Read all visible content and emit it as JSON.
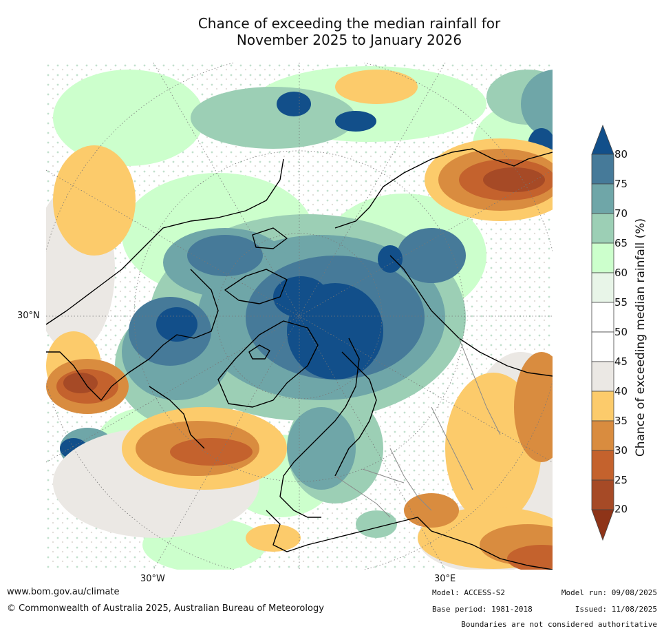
{
  "title": {
    "line1": "Chance of exceeding the median rainfall for",
    "line2": "November 2025 to January 2026"
  },
  "map": {
    "projection": "north polar stereographic",
    "lat_labels": [
      "30°N"
    ],
    "lon_labels": [
      "30°W",
      "30°E"
    ]
  },
  "colorbar": {
    "label": "Chance of exceeding median rainfall (%)",
    "ticks": [
      "80",
      "75",
      "70",
      "65",
      "60",
      "55",
      "50",
      "45",
      "40",
      "35",
      "30",
      "25",
      "20"
    ],
    "bins": [
      {
        "range": ">80",
        "color": "#124f8a"
      },
      {
        "range": "75-80",
        "color": "#467a99"
      },
      {
        "range": "70-75",
        "color": "#6fa6a8"
      },
      {
        "range": "65-70",
        "color": "#9ccfb5"
      },
      {
        "range": "60-65",
        "color": "#ccffcc"
      },
      {
        "range": "55-60",
        "color": "#e8f5e8"
      },
      {
        "range": "50-55",
        "color": "#ffffff"
      },
      {
        "range": "45-50",
        "color": "#ffffff"
      },
      {
        "range": "40-45",
        "color": "#ebe8e4"
      },
      {
        "range": "35-40",
        "color": "#fccb6b"
      },
      {
        "range": "30-35",
        "color": "#d98c3f"
      },
      {
        "range": "25-30",
        "color": "#c4622d"
      },
      {
        "range": "20-25",
        "color": "#a64a26"
      },
      {
        "range": "<20",
        "color": "#8e3418"
      }
    ]
  },
  "footer": {
    "website": "www.bom.gov.au/climate",
    "copyright": "© Commonwealth of Australia 2025, Australian Bureau of Meteorology",
    "model": "Model: ACCESS-S2",
    "base_period": "Base period: 1981-2018",
    "model_run": "Model run: 09/08/2025",
    "issued": "Issued: 11/08/2025",
    "disclaimer": "Boundaries are not considered authoritative"
  },
  "colors": {
    "coastline": "#000000",
    "borders": "#8a8a8a",
    "graticule": "#777777"
  }
}
